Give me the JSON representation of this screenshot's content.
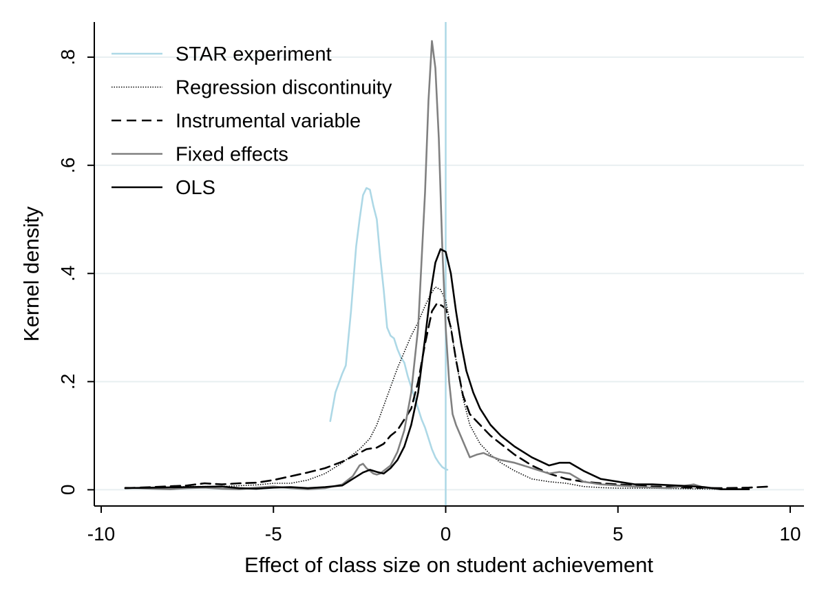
{
  "chart_data": {
    "type": "line",
    "title": "",
    "xlabel": "Effect of class size on student achievement",
    "ylabel": "Kernel density",
    "xlim": [
      -10.2,
      10.4
    ],
    "ylim": [
      -0.03,
      0.865
    ],
    "x_ticks": [
      -10,
      -5,
      0,
      5,
      10
    ],
    "x_tick_labels": [
      "-10",
      "-5",
      "0",
      "5",
      "10"
    ],
    "y_ticks": [
      0,
      0.2,
      0.4,
      0.6,
      0.8
    ],
    "y_tick_labels": [
      "0",
      ".2",
      ".4",
      ".6",
      ".8"
    ],
    "grid": "horizontal",
    "legend_position": "top-left",
    "reference_line": {
      "axis": "x",
      "value": 0,
      "color": "#add8e6"
    },
    "series": [
      {
        "name": "STAR experiment",
        "color": "#add8e6",
        "style": "solid",
        "x": [
          -3.35,
          -3.2,
          -3.0,
          -2.9,
          -2.75,
          -2.6,
          -2.5,
          -2.4,
          -2.3,
          -2.2,
          -2.1,
          -2.0,
          -1.9,
          -1.8,
          -1.7,
          -1.6,
          -1.5,
          -1.4,
          -1.3,
          -1.2,
          -1.1,
          -1.0,
          -0.9,
          -0.8,
          -0.7,
          -0.6,
          -0.5,
          -0.4,
          -0.3,
          -0.2,
          -0.1,
          0.0,
          0.05
        ],
        "y": [
          0.127,
          0.18,
          0.215,
          0.23,
          0.33,
          0.45,
          0.5,
          0.545,
          0.558,
          0.555,
          0.525,
          0.5,
          0.43,
          0.37,
          0.3,
          0.285,
          0.28,
          0.26,
          0.245,
          0.235,
          0.21,
          0.19,
          0.17,
          0.15,
          0.13,
          0.115,
          0.095,
          0.075,
          0.06,
          0.05,
          0.042,
          0.038,
          0.037
        ]
      },
      {
        "name": "Regression discontinuity",
        "color": "#000000",
        "style": "dotted",
        "x": [
          -9.3,
          -8.5,
          -7.5,
          -6.5,
          -5.5,
          -5.0,
          -4.5,
          -4.0,
          -3.5,
          -3.0,
          -2.5,
          -2.2,
          -2.0,
          -1.8,
          -1.6,
          -1.4,
          -1.2,
          -1.0,
          -0.8,
          -0.6,
          -0.45,
          -0.3,
          -0.15,
          0.0,
          0.15,
          0.3,
          0.5,
          0.7,
          1.0,
          1.3,
          1.6,
          2.0,
          2.5,
          3.0,
          3.5,
          4.0,
          4.5,
          5.0,
          6.0,
          7.0,
          8.0,
          8.8
        ],
        "y": [
          0.003,
          0.003,
          0.006,
          0.006,
          0.009,
          0.012,
          0.012,
          0.018,
          0.03,
          0.05,
          0.075,
          0.095,
          0.12,
          0.155,
          0.19,
          0.225,
          0.255,
          0.285,
          0.31,
          0.34,
          0.36,
          0.375,
          0.37,
          0.35,
          0.3,
          0.24,
          0.17,
          0.12,
          0.085,
          0.065,
          0.05,
          0.035,
          0.02,
          0.015,
          0.012,
          0.006,
          0.004,
          0.003,
          0.003,
          0.002,
          0.001,
          0.001
        ]
      },
      {
        "name": "Instrumental variable",
        "color": "#000000",
        "style": "dashed",
        "x": [
          -9.3,
          -8.5,
          -7.5,
          -7.0,
          -6.5,
          -6.0,
          -5.5,
          -5.0,
          -4.5,
          -4.0,
          -3.5,
          -3.0,
          -2.6,
          -2.3,
          -2.0,
          -1.8,
          -1.6,
          -1.4,
          -1.2,
          -1.0,
          -0.8,
          -0.6,
          -0.4,
          -0.25,
          -0.1,
          0.0,
          0.15,
          0.3,
          0.5,
          0.7,
          1.0,
          1.3,
          1.6,
          2.0,
          2.5,
          3.0,
          3.5,
          4.0,
          4.5,
          5.0,
          5.5,
          6.0,
          7.0,
          8.0,
          8.8,
          9.4
        ],
        "y": [
          0.003,
          0.005,
          0.008,
          0.012,
          0.01,
          0.012,
          0.013,
          0.018,
          0.025,
          0.032,
          0.04,
          0.052,
          0.065,
          0.075,
          0.078,
          0.085,
          0.1,
          0.11,
          0.13,
          0.15,
          0.2,
          0.27,
          0.33,
          0.345,
          0.34,
          0.335,
          0.3,
          0.24,
          0.175,
          0.14,
          0.12,
          0.1,
          0.085,
          0.065,
          0.045,
          0.03,
          0.02,
          0.015,
          0.012,
          0.01,
          0.008,
          0.006,
          0.004,
          0.003,
          0.004,
          0.006
        ]
      },
      {
        "name": "Fixed effects",
        "color": "#808080",
        "style": "solid",
        "x": [
          -9.3,
          -8.5,
          -8.0,
          -7.5,
          -7.0,
          -6.5,
          -6.0,
          -5.5,
          -5.0,
          -4.5,
          -4.0,
          -3.5,
          -3.0,
          -2.7,
          -2.5,
          -2.4,
          -2.3,
          -2.2,
          -2.1,
          -2.0,
          -1.9,
          -1.8,
          -1.6,
          -1.4,
          -1.2,
          -1.0,
          -0.8,
          -0.6,
          -0.5,
          -0.4,
          -0.3,
          -0.2,
          -0.1,
          0.0,
          0.1,
          0.2,
          0.3,
          0.5,
          0.7,
          0.9,
          1.1,
          1.3,
          1.6,
          2.0,
          2.5,
          3.0,
          3.3,
          3.6,
          4.0,
          4.5,
          5.0,
          5.5,
          6.0,
          6.5,
          7.0,
          7.2,
          7.5,
          8.0,
          8.8
        ],
        "y": [
          0.004,
          0.002,
          0.001,
          0.003,
          0.004,
          0.002,
          0.001,
          0.004,
          0.006,
          0.003,
          0.001,
          0.003,
          0.01,
          0.025,
          0.045,
          0.048,
          0.04,
          0.035,
          0.03,
          0.028,
          0.03,
          0.035,
          0.045,
          0.07,
          0.11,
          0.18,
          0.3,
          0.55,
          0.72,
          0.83,
          0.78,
          0.65,
          0.45,
          0.3,
          0.2,
          0.14,
          0.12,
          0.09,
          0.06,
          0.065,
          0.068,
          0.062,
          0.055,
          0.05,
          0.04,
          0.03,
          0.033,
          0.03,
          0.015,
          0.01,
          0.008,
          0.006,
          0.004,
          0.003,
          0.008,
          0.01,
          0.004,
          0.001,
          0.001
        ]
      },
      {
        "name": "OLS",
        "color": "#000000",
        "style": "solid",
        "x": [
          -9.3,
          -8.5,
          -7.5,
          -6.5,
          -6.0,
          -5.5,
          -5.0,
          -4.5,
          -4.0,
          -3.5,
          -3.0,
          -2.7,
          -2.4,
          -2.2,
          -2.0,
          -1.8,
          -1.6,
          -1.4,
          -1.2,
          -1.0,
          -0.8,
          -0.6,
          -0.45,
          -0.3,
          -0.15,
          0.0,
          0.15,
          0.3,
          0.45,
          0.6,
          0.8,
          1.0,
          1.3,
          1.6,
          2.0,
          2.5,
          3.0,
          3.3,
          3.6,
          4.0,
          4.5,
          5.0,
          5.5,
          6.0,
          7.0,
          7.5,
          8.0,
          8.8
        ],
        "y": [
          0.003,
          0.004,
          0.005,
          0.006,
          0.003,
          0.002,
          0.004,
          0.005,
          0.003,
          0.005,
          0.008,
          0.02,
          0.032,
          0.037,
          0.033,
          0.03,
          0.04,
          0.055,
          0.08,
          0.12,
          0.18,
          0.28,
          0.36,
          0.42,
          0.445,
          0.44,
          0.4,
          0.33,
          0.27,
          0.22,
          0.18,
          0.15,
          0.12,
          0.1,
          0.08,
          0.06,
          0.045,
          0.05,
          0.05,
          0.035,
          0.02,
          0.015,
          0.01,
          0.01,
          0.007,
          0.005,
          0.001,
          0.001
        ]
      }
    ]
  }
}
